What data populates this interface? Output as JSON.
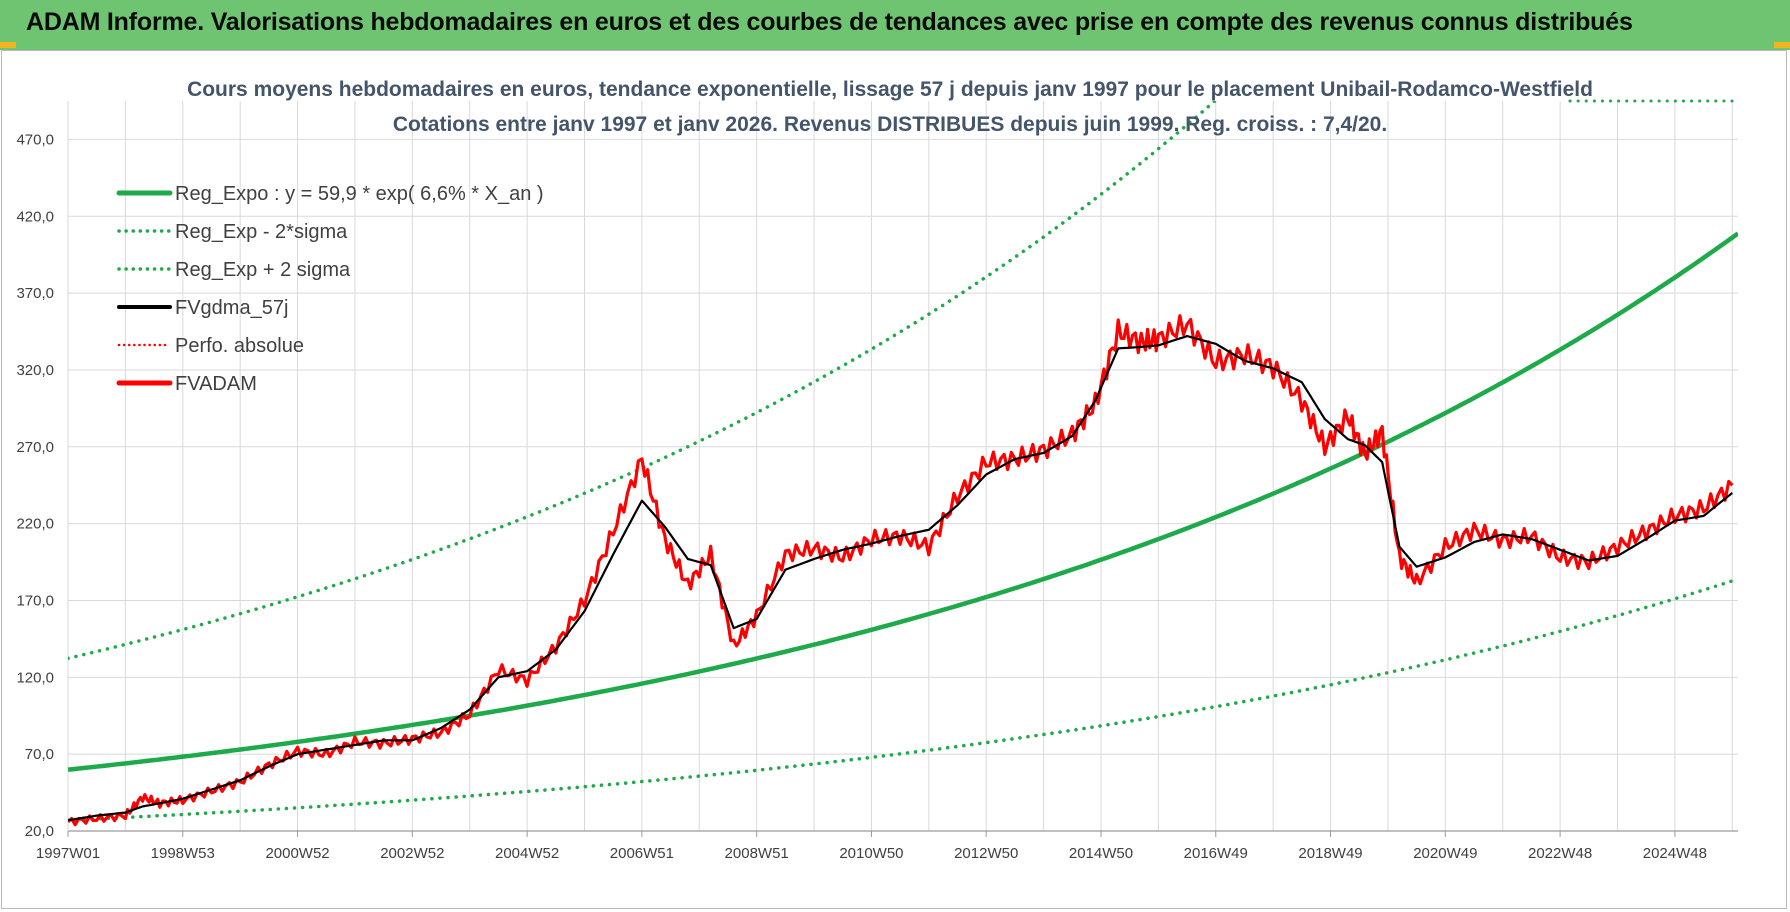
{
  "header": {
    "title": "ADAM Informe. Valorisations hebdomadaires en euros et des courbes de tendances avec prise en compte des revenus connus distribués"
  },
  "colors": {
    "header_bg": "#6fc472",
    "reg": "#1eaa4b",
    "fv57": "#000000",
    "fvadam": "#ff0000",
    "title_text": "#44546a"
  },
  "chart_data": {
    "type": "line",
    "title": "Cours moyens hebdomadaires en euros, tendance exponentielle, lissage 57 j depuis janv 1997  pour le placement Unibail-Rodamco-Westfield",
    "subtitle": "Cotations entre janv 1997 et janv 2026. Revenus DISTRIBUES depuis juin 1999. Reg. croiss. : 7,4/20.",
    "xlabel": "",
    "ylabel": "",
    "ylim": [
      20,
      495
    ],
    "xlim": [
      1997.0,
      2026.1
    ],
    "yticks": [
      {
        "v": 20,
        "label": "20,0"
      },
      {
        "v": 70,
        "label": "70,0"
      },
      {
        "v": 120,
        "label": "120,0"
      },
      {
        "v": 170,
        "label": "170,0"
      },
      {
        "v": 220,
        "label": "220,0"
      },
      {
        "v": 270,
        "label": "270,0"
      },
      {
        "v": 320,
        "label": "320,0"
      },
      {
        "v": 370,
        "label": "370,0"
      },
      {
        "v": 420,
        "label": "420,0"
      },
      {
        "v": 470,
        "label": "470,0"
      }
    ],
    "xticks": [
      {
        "x": 1997.0,
        "label": "1997W01"
      },
      {
        "x": 1999.0,
        "label": "1998W53"
      },
      {
        "x": 2001.0,
        "label": "2000W52"
      },
      {
        "x": 2003.0,
        "label": "2002W52"
      },
      {
        "x": 2005.0,
        "label": "2004W52"
      },
      {
        "x": 2007.0,
        "label": "2006W51"
      },
      {
        "x": 2009.0,
        "label": "2008W51"
      },
      {
        "x": 2011.0,
        "label": "2010W50"
      },
      {
        "x": 2013.0,
        "label": "2012W50"
      },
      {
        "x": 2015.0,
        "label": "2014W50"
      },
      {
        "x": 2017.0,
        "label": "2016W49"
      },
      {
        "x": 2019.0,
        "label": "2018W49"
      },
      {
        "x": 2021.0,
        "label": "2020W49"
      },
      {
        "x": 2023.0,
        "label": "2022W48"
      },
      {
        "x": 2025.0,
        "label": "2024W48"
      }
    ],
    "grid": true,
    "legend_position": "top-left",
    "regression": {
      "a": 59.9,
      "rate": 0.066,
      "x0": 1997.0,
      "x1": 2026.1,
      "lower_factor": 0.45,
      "upper_factor": 2.21
    },
    "series": [
      {
        "name": "Reg_Expo : y = 59,9 * exp( 6,6% *  X_an )",
        "style": "reg"
      },
      {
        "name": "Reg_Exp - 2*sigma",
        "style": "lower"
      },
      {
        "name": "Reg_Exp + 2 sigma",
        "style": "upper"
      },
      {
        "name": "FVgdma_57j",
        "style": "smooth",
        "x": [
          1997.0,
          1997.5,
          1998.0,
          1998.3,
          1998.6,
          1999.0,
          1999.5,
          2000.0,
          2000.5,
          2001.0,
          2001.5,
          2002.0,
          2002.5,
          2003.0,
          2003.5,
          2004.0,
          2004.5,
          2005.0,
          2005.5,
          2006.0,
          2006.5,
          2007.0,
          2007.4,
          2007.8,
          2008.2,
          2008.6,
          2009.0,
          2009.5,
          2010.0,
          2010.5,
          2011.0,
          2011.5,
          2012.0,
          2012.5,
          2013.0,
          2013.5,
          2014.0,
          2014.5,
          2014.9,
          2015.3,
          2015.7,
          2016.0,
          2016.5,
          2017.0,
          2017.5,
          2018.0,
          2018.5,
          2018.9,
          2019.3,
          2019.6,
          2019.9,
          2020.2,
          2020.5,
          2021.0,
          2021.5,
          2022.0,
          2022.5,
          2023.0,
          2023.5,
          2024.0,
          2024.5,
          2025.0,
          2025.5,
          2026.0
        ],
        "y": [
          27,
          30,
          32,
          36,
          38,
          41,
          47,
          53,
          62,
          70,
          73,
          76,
          79,
          79,
          87,
          99,
          120,
          124,
          138,
          163,
          200,
          235,
          218,
          197,
          193,
          152,
          158,
          190,
          197,
          203,
          207,
          212,
          216,
          232,
          252,
          262,
          266,
          277,
          300,
          334,
          335,
          336,
          342,
          337,
          326,
          321,
          312,
          288,
          275,
          271,
          260,
          205,
          192,
          198,
          208,
          213,
          210,
          203,
          196,
          199,
          210,
          222,
          225,
          240
        ]
      },
      {
        "name": "Perfo. absolue",
        "style": "perfo"
      },
      {
        "name": "FVADAM",
        "style": "adam",
        "x": [
          1997.0,
          1997.5,
          1998.0,
          1998.3,
          1998.6,
          1999.0,
          1999.5,
          2000.0,
          2000.5,
          2001.0,
          2001.5,
          2002.0,
          2002.5,
          2003.0,
          2003.5,
          2004.0,
          2004.5,
          2005.0,
          2005.5,
          2006.0,
          2006.5,
          2007.0,
          2007.4,
          2007.8,
          2008.2,
          2008.6,
          2009.0,
          2009.5,
          2010.0,
          2010.5,
          2011.0,
          2011.5,
          2012.0,
          2012.5,
          2013.0,
          2013.5,
          2014.0,
          2014.5,
          2014.9,
          2015.3,
          2015.7,
          2016.0,
          2016.5,
          2017.0,
          2017.5,
          2018.0,
          2018.5,
          2018.9,
          2019.3,
          2019.6,
          2019.9,
          2020.2,
          2020.5,
          2021.0,
          2021.5,
          2022.0,
          2022.5,
          2023.0,
          2023.5,
          2024.0,
          2024.5,
          2025.0,
          2025.5,
          2026.0
        ],
        "y": [
          26,
          28,
          30,
          42,
          38,
          40,
          46,
          52,
          63,
          72,
          70,
          78,
          77,
          80,
          84,
          96,
          125,
          118,
          140,
          170,
          215,
          262,
          210,
          180,
          200,
          140,
          160,
          200,
          204,
          198,
          210,
          212,
          205,
          238,
          260,
          262,
          268,
          278,
          298,
          345,
          338,
          340,
          350,
          325,
          330,
          322,
          300,
          270,
          290,
          265,
          280,
          198,
          182,
          205,
          216,
          209,
          212,
          198,
          195,
          205,
          215,
          225,
          230,
          245
        ]
      }
    ]
  }
}
